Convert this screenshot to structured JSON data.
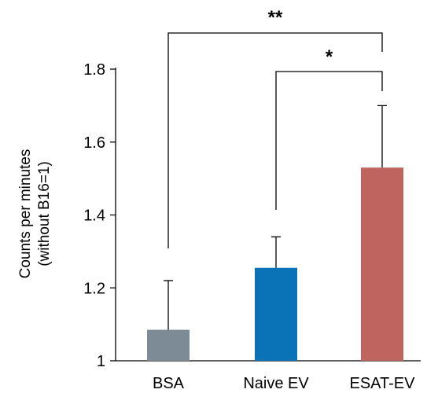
{
  "chart_data": {
    "type": "bar",
    "categories": [
      "BSA",
      "Naive EV",
      "ESAT-EV"
    ],
    "values": [
      1.085,
      1.255,
      1.53
    ],
    "errors": [
      0.135,
      0.085,
      0.17
    ],
    "colors": [
      "#7d8b96",
      "#0a73b8",
      "#c06460"
    ],
    "ylabel_lines": [
      "Counts per minutes",
      "(without B16=1)"
    ],
    "xlabel": "",
    "ylim": [
      1.0,
      1.8
    ],
    "yticks": [
      1,
      1.2,
      1.4,
      1.6,
      1.8
    ],
    "ytick_labels": [
      "1",
      "1.2",
      "1.4",
      "1.6",
      "1.8"
    ],
    "grid": false,
    "significance": [
      {
        "from": 1,
        "to": 2,
        "label": "*"
      },
      {
        "from": 0,
        "to": 2,
        "label": "**"
      }
    ]
  }
}
